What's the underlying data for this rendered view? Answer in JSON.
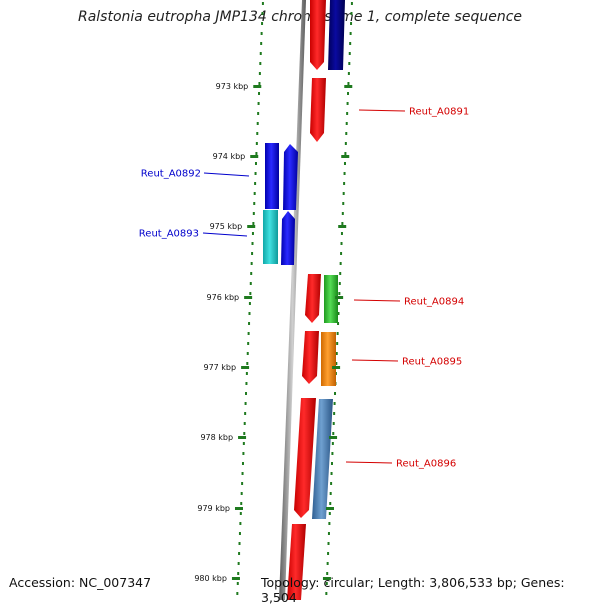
{
  "title": "Ralstonia eutropha JMP134 chromosome 1, complete sequence",
  "footer": {
    "accession": "Accession: NC_007347",
    "topology": "Topology: circular; Length: 3,806,533 bp; Genes: 3,504"
  },
  "ticks": [
    "973 kbp",
    "974 kbp",
    "975 kbp",
    "976 kbp",
    "977 kbp",
    "978 kbp",
    "979 kbp",
    "980 kbp"
  ],
  "gene_labels": [
    {
      "name": "Reut_A0891",
      "color": "#d40000"
    },
    {
      "name": "Reut_A0892",
      "color": "#0000cc"
    },
    {
      "name": "Reut_A0893",
      "color": "#0000cc"
    },
    {
      "name": "Reut_A0894",
      "color": "#d40000"
    },
    {
      "name": "Reut_A0895",
      "color": "#d40000"
    },
    {
      "name": "Reut_A0896",
      "color": "#d40000"
    }
  ],
  "colors": {
    "backbone": "#8a8a8a",
    "dots": "#1f7a1f",
    "red": "#ff0000",
    "navy": "#000080",
    "blue": "#0000ff",
    "cyan": "#22cccc",
    "green": "#33cc33",
    "orange": "#ff8c00",
    "steelblue": "#4a80b8"
  }
}
